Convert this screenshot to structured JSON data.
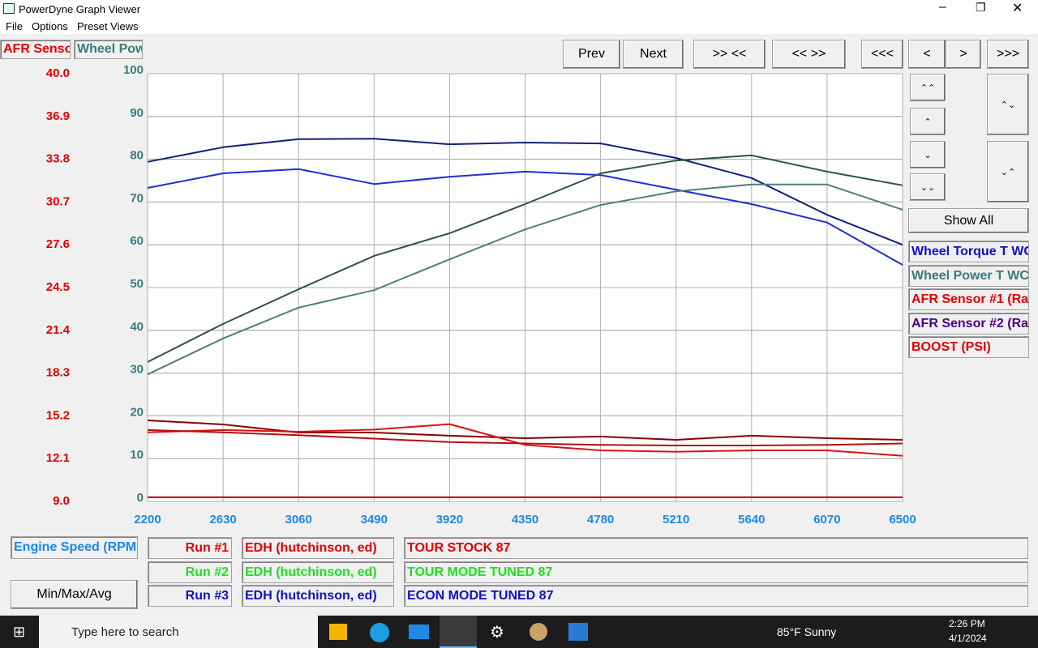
{
  "window": {
    "title": "PowerDyne Graph Viewer"
  },
  "menu": [
    "File",
    "Options",
    "Preset Views"
  ],
  "axis_tabs": [
    {
      "label": "AFR Senso",
      "color": "#e00000"
    },
    {
      "label": "Wheel Pow",
      "color": "#3a7a7a"
    }
  ],
  "toolbar": [
    "Prev",
    "Next",
    ">> <<",
    "<< >>",
    "<<<",
    "<",
    ">",
    ">>>"
  ],
  "show_all": "Show All",
  "legend_panel": [
    {
      "label": "Wheel Torque T WC",
      "color": "#1010c0"
    },
    {
      "label": "Wheel Power T WC",
      "color": "#3a7a7a"
    },
    {
      "label": "AFR Sensor #1 (Ra",
      "color": "#e00000"
    },
    {
      "label": "AFR Sensor #2 (Ra",
      "color": "#4b0082"
    },
    {
      "label": "BOOST (PSI)",
      "color": "#e00000"
    }
  ],
  "chart_data": {
    "type": "line",
    "x": [
      2200,
      2630,
      3060,
      3490,
      3920,
      4350,
      4780,
      5210,
      5640,
      6070,
      6500
    ],
    "xlim": [
      2200,
      6500
    ],
    "xticks": [
      2200,
      2630,
      3060,
      3490,
      3920,
      4350,
      4780,
      5210,
      5640,
      6070,
      6500
    ],
    "ylim": [
      9,
      40
    ],
    "yticks": [
      {
        "value": 9,
        "label": "9.0"
      },
      12.1,
      15.2,
      18.3,
      21.4,
      24.5,
      27.6,
      30.7,
      33.8,
      36.9,
      {
        "value": 40,
        "label": "40.0"
      }
    ],
    "y2lim": [
      0,
      100
    ],
    "y2ticks": [
      0,
      10,
      20,
      30,
      40,
      50,
      60,
      70,
      80,
      90,
      100
    ],
    "ytick_color": "#e00000",
    "y2tick_color": "#3a7a7a",
    "xtick_color": "#1e88e5",
    "grid": true,
    "series": [
      {
        "color": "#13207a",
        "axis": "y2",
        "values": [
          79.4,
          82.8,
          84.7,
          84.8,
          83.5,
          83.9,
          83.7,
          80.3,
          75.6,
          67,
          60
        ]
      },
      {
        "color": "#1f2fcf",
        "axis": "y2",
        "values": [
          73.3,
          76.7,
          77.7,
          74.2,
          75.9,
          77.1,
          76.3,
          72.9,
          69.5,
          65.2,
          55.3
        ]
      },
      {
        "color": "#2f4f4f",
        "axis": "y2",
        "values": [
          32.6,
          41.5,
          49.6,
          57.4,
          62.7,
          69.5,
          76.7,
          79.7,
          80.9,
          77.1,
          73.9
        ]
      },
      {
        "color": "#4a8080",
        "axis": "y2",
        "values": [
          29.7,
          38.1,
          45.3,
          49.4,
          56.6,
          63.6,
          69.3,
          72.5,
          74.1,
          74.1,
          68.2
        ]
      },
      {
        "color": "#8b0000",
        "values": [
          14.87,
          14.58,
          13.99,
          13.99,
          13.76,
          13.58,
          13.7,
          13.46,
          13.76,
          13.58,
          13.46
        ]
      },
      {
        "color": "#dd1111",
        "values": [
          14.0,
          14.17,
          14.05,
          14.2,
          14.6,
          13.1,
          12.7,
          12.6,
          12.7,
          12.7,
          12.3
        ]
      },
      {
        "color": "#b01010",
        "values": [
          14.17,
          14.0,
          13.8,
          13.55,
          13.3,
          13.2,
          13.1,
          13.05,
          13.05,
          13.1,
          13.2
        ]
      },
      {
        "color": "#cc0000",
        "values": [
          9.3,
          9.3,
          9.3,
          9.3,
          9.3,
          9.3,
          9.3,
          9.3,
          9.3,
          9.3,
          9.3
        ]
      }
    ]
  },
  "x_channel": {
    "label": "Engine Speed (RPM",
    "color": "#1e88e5"
  },
  "stats_button": "Min/Max/Avg",
  "runs": [
    {
      "run": "Run #1",
      "customer": "EDH (hutchinson, ed)",
      "description": "TOUR STOCK 87",
      "color": "#e00000"
    },
    {
      "run": "Run #2",
      "customer": "EDH (hutchinson, ed)",
      "description": "TOUR MODE TUNED 87",
      "color": "#22dd22"
    },
    {
      "run": "Run #3",
      "customer": "EDH (hutchinson, ed)",
      "description": "ECON MODE TUNED 87",
      "color": "#1010c0"
    }
  ],
  "taskbar": {
    "search": "Type here to search",
    "weather": "85°F  Sunny",
    "time": "2:26 PM",
    "date": "4/1/2024"
  }
}
